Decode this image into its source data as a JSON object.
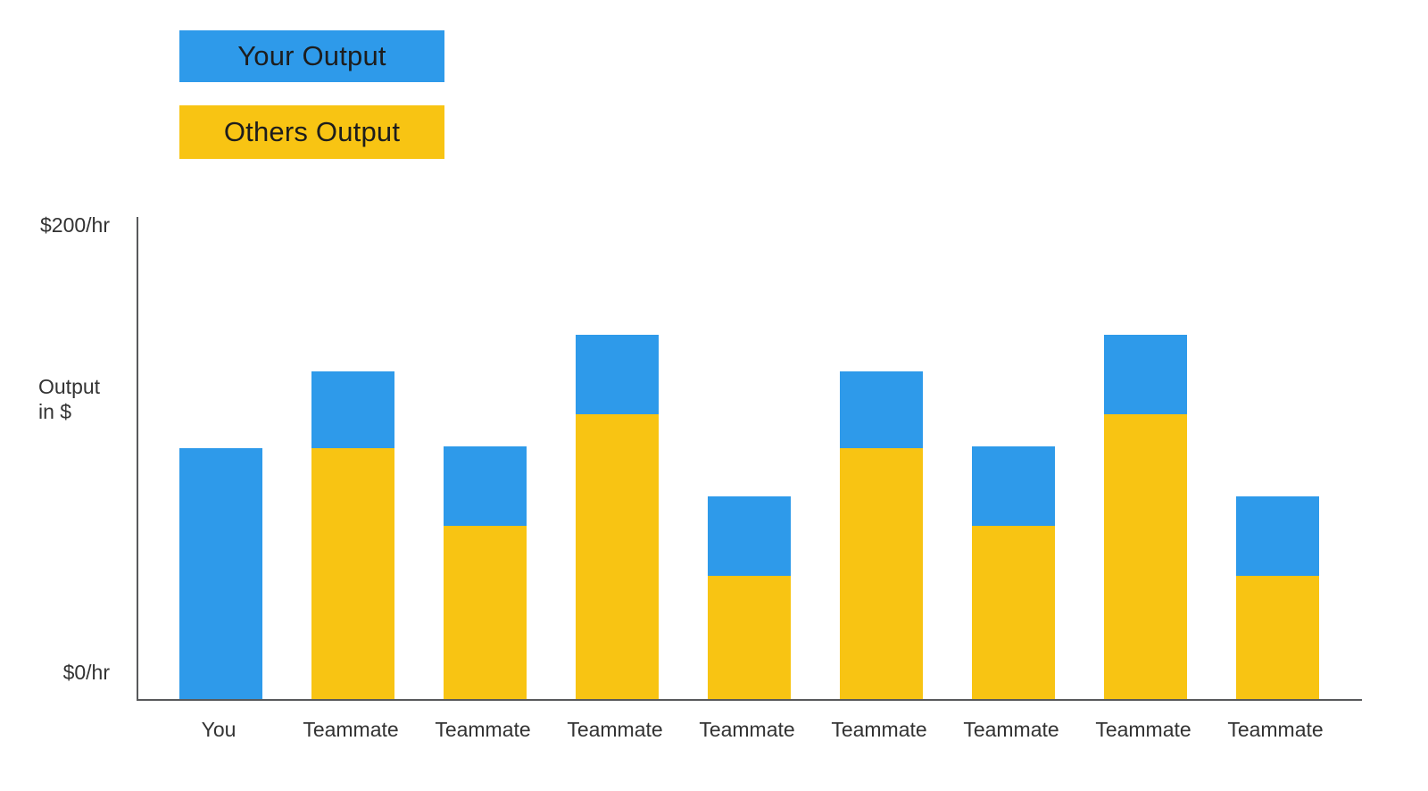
{
  "page": {
    "background": "#FFFFFF",
    "text_color": "#333333",
    "axis_line_color": "#58595B"
  },
  "legend": {
    "items": [
      {
        "label": "Your Output",
        "color": "#2E9AEA"
      },
      {
        "label": "Others Output",
        "color": "#F8C413"
      }
    ]
  },
  "axis": {
    "y_top_label": "$200/hr",
    "y_bottom_label": "$0/hr",
    "y_title_line1": "Output",
    "y_title_line2": "in $"
  },
  "chart_data": {
    "type": "bar",
    "stacked": true,
    "title": "",
    "categories": [
      "You",
      "Teammate",
      "Teammate",
      "Teammate",
      "Teammate",
      "Teammate",
      "Teammate",
      "Teammate",
      "Teammate"
    ],
    "series": [
      {
        "name": "Others Output",
        "color": "#F8C413",
        "values": [
          0,
          104,
          72,
          118,
          51,
          104,
          72,
          118,
          51
        ]
      },
      {
        "name": "Your Output",
        "color": "#2E9AEA",
        "values": [
          104,
          32,
          33,
          33,
          33,
          32,
          33,
          33,
          33
        ]
      }
    ],
    "xlabel": "",
    "ylabel": "Output in $",
    "ylim": [
      0,
      200
    ],
    "yticks": [
      {
        "value": 200,
        "label": "$200/hr"
      },
      {
        "value": 0,
        "label": "$0/hr"
      }
    ],
    "grid": false,
    "legend_position": "top-left"
  }
}
